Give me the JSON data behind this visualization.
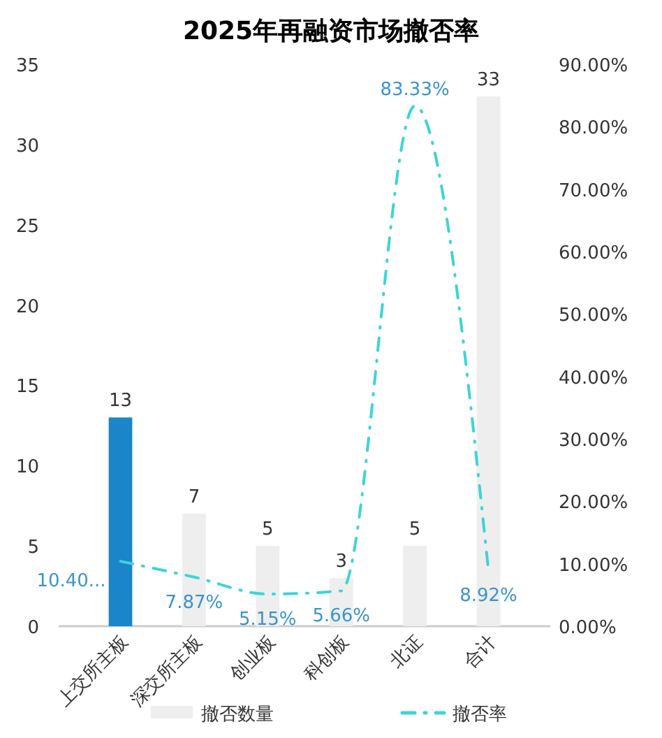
{
  "chart_data": {
    "type": "bar",
    "title": "2025年再融资市场撤否率",
    "categories": [
      "上交所主板",
      "深交所主板",
      "创业板",
      "科创板",
      "北证",
      "合计"
    ],
    "series": [
      {
        "name": "撤否数量",
        "colors": [
          "#1a86c9",
          "#eeeeee",
          "#eeeeee",
          "#eeeeee",
          "#eeeeee",
          "#eeeeee"
        ],
        "color": "#eeeeee",
        "values": [
          13,
          7,
          5,
          3,
          5,
          33
        ]
      },
      {
        "name": "撤否率",
        "type": "line",
        "axis": "y2",
        "color": "#3fd3d6",
        "line_style": "dashdot",
        "values": [
          10.4,
          7.87,
          5.15,
          5.66,
          83.33,
          8.92
        ],
        "value_labels": [
          "10.40...",
          "7.87%",
          "5.15%",
          "5.66%",
          "83.33%",
          "8.92%"
        ]
      }
    ],
    "data_labels": true,
    "ylim": [
      0,
      35
    ],
    "yticks": [
      0,
      5,
      10,
      15,
      20,
      25,
      30,
      35
    ],
    "y2lim": [
      0,
      90
    ],
    "y2ticks": [
      {
        "value": 0,
        "label": "0.00%"
      },
      {
        "value": 10,
        "label": "10.00%"
      },
      {
        "value": 20,
        "label": "20.00%"
      },
      {
        "value": 30,
        "label": "30.00%"
      },
      {
        "value": 40,
        "label": "40.00%"
      },
      {
        "value": 50,
        "label": "50.00%"
      },
      {
        "value": 60,
        "label": "60.00%"
      },
      {
        "value": 70,
        "label": "70.00%"
      },
      {
        "value": 80,
        "label": "80.00%"
      },
      {
        "value": 90,
        "label": "90.00%"
      }
    ],
    "grid": false,
    "legend": "bottom"
  }
}
